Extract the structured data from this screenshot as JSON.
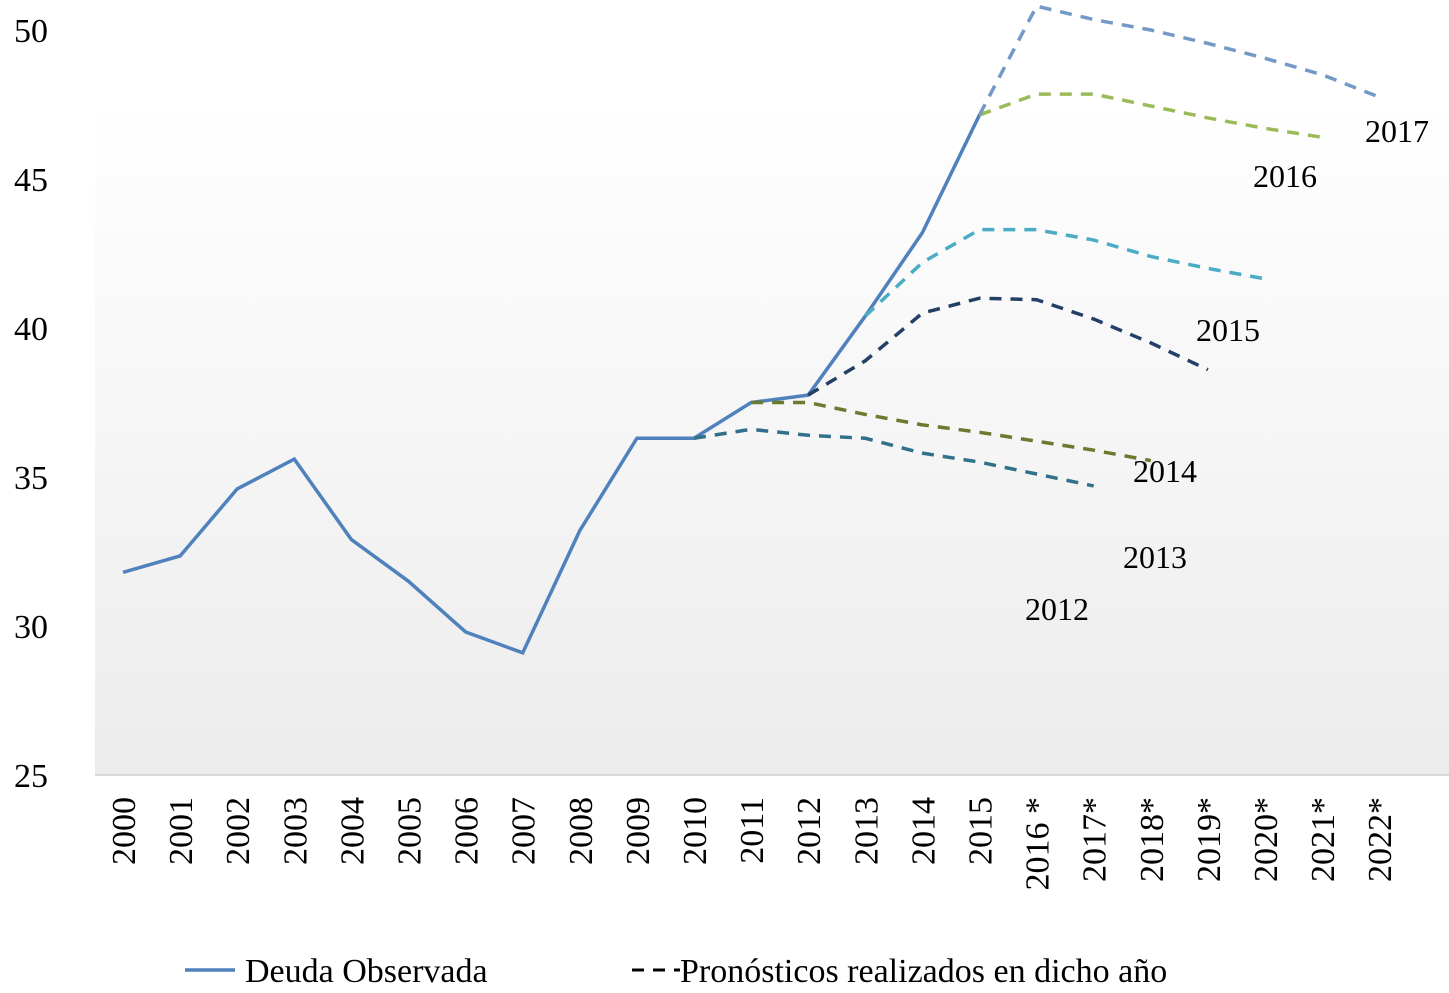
{
  "chart_data": {
    "type": "line",
    "categories": [
      "2000",
      "2001",
      "2002",
      "2003",
      "2004",
      "2005",
      "2006",
      "2007",
      "2008",
      "2009",
      "2010",
      "2011",
      "2012",
      "2013",
      "2014",
      "2015",
      "2016 *",
      "2017*",
      "2018*",
      "2019*",
      "2020*",
      "2021*",
      "2022*"
    ],
    "ylim": [
      25,
      50
    ],
    "yticks": [
      25,
      30,
      35,
      40,
      45,
      50
    ],
    "series": [
      {
        "name": "Deuda Observada",
        "color": "#4f81bd",
        "style": "solid",
        "values": [
          31.8,
          32.35,
          34.6,
          35.6,
          32.9,
          31.5,
          29.8,
          29.1,
          33.2,
          36.3,
          36.3,
          37.5,
          37.75,
          40.4,
          43.2,
          47.15,
          null,
          null,
          null,
          null,
          null,
          null,
          null
        ]
      },
      {
        "name": "Pronósticos realizados en dicho año",
        "color": "#31708a",
        "style": "dashed",
        "values": [
          null,
          null,
          null,
          null,
          null,
          null,
          null,
          null,
          null,
          null,
          36.3,
          36.6,
          36.4,
          36.3,
          35.8,
          35.5,
          35.1,
          34.7,
          null,
          null,
          null,
          null,
          null
        ]
      },
      {
        "color": "#6b7a2f",
        "style": "dashed",
        "values": [
          null,
          null,
          null,
          null,
          null,
          null,
          null,
          null,
          null,
          null,
          null,
          37.5,
          37.5,
          37.1,
          36.75,
          36.5,
          36.2,
          35.9,
          35.55,
          null,
          null,
          null,
          null
        ]
      },
      {
        "color": "#243f66",
        "style": "dashed",
        "values": [
          null,
          null,
          null,
          null,
          null,
          null,
          null,
          null,
          null,
          null,
          null,
          null,
          37.75,
          38.9,
          40.5,
          41.0,
          40.95,
          40.3,
          39.5,
          38.6,
          null,
          null,
          null
        ]
      },
      {
        "color": "#4bacc6",
        "style": "dashed",
        "values": [
          null,
          null,
          null,
          null,
          null,
          null,
          null,
          null,
          null,
          null,
          null,
          null,
          null,
          40.4,
          42.2,
          43.3,
          43.3,
          42.95,
          42.4,
          42.0,
          41.65,
          null,
          null
        ]
      },
      {
        "color": "#9bbb59",
        "style": "dashed",
        "values": [
          null,
          null,
          null,
          null,
          null,
          null,
          null,
          null,
          null,
          null,
          null,
          null,
          null,
          null,
          null,
          47.15,
          47.85,
          47.85,
          47.45,
          47.05,
          46.7,
          46.4,
          null
        ]
      },
      {
        "color": "#7399c6",
        "style": "dashed",
        "values": [
          null,
          null,
          null,
          null,
          null,
          null,
          null,
          null,
          null,
          null,
          null,
          null,
          null,
          null,
          null,
          47.15,
          50.8,
          50.35,
          50.0,
          49.55,
          49.05,
          48.5,
          47.75
        ]
      }
    ],
    "annotations": [
      "2012",
      "2013",
      "2014",
      "2015",
      "2016",
      "2017"
    ]
  }
}
